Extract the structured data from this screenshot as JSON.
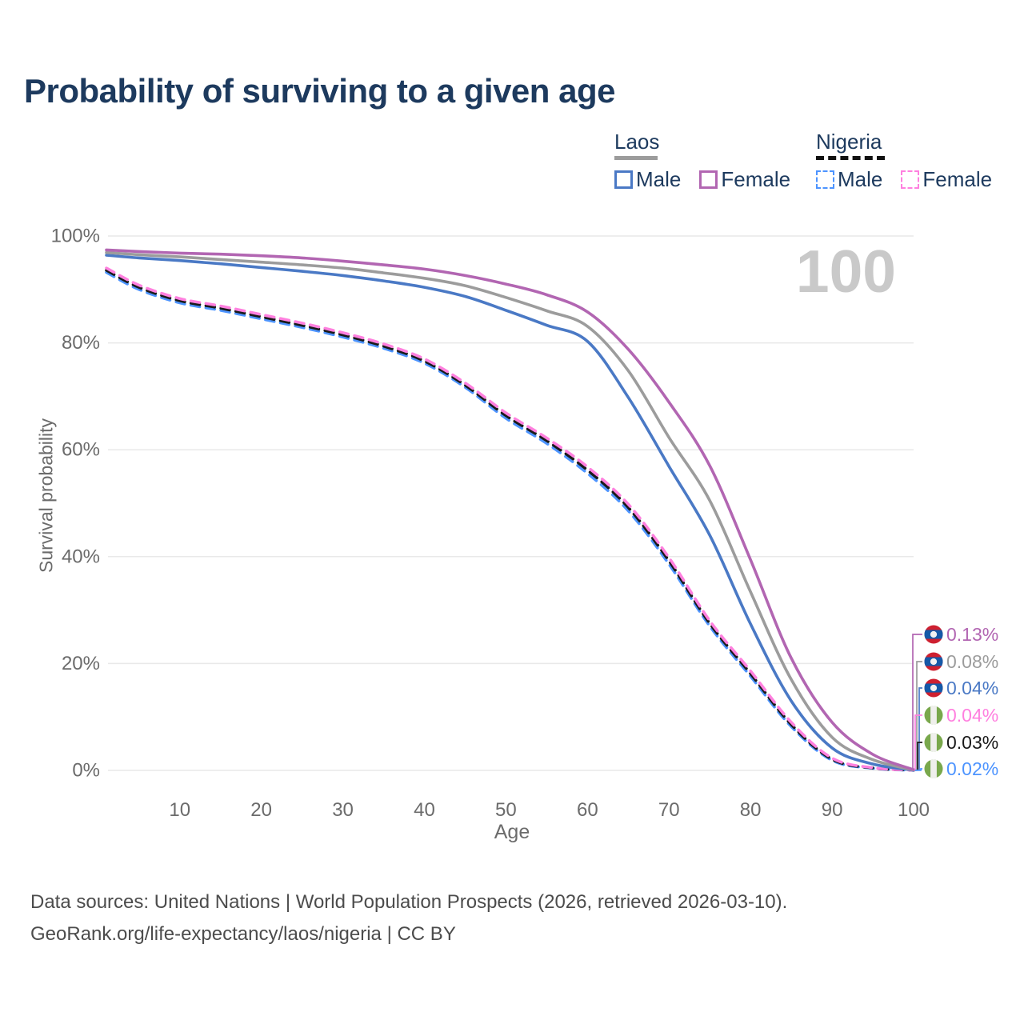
{
  "header": {
    "title": "Probability of surviving to a given age"
  },
  "legend": {
    "groups": [
      {
        "title": "Laos",
        "line_style": "solid",
        "underline_color": "#9c9c9c",
        "items": [
          {
            "label": "Male",
            "color": "#4a79c5"
          },
          {
            "label": "Female",
            "color": "#b266b2"
          }
        ]
      },
      {
        "title": "Nigeria",
        "line_style": "dashed",
        "underline_color": "#111111",
        "items": [
          {
            "label": "Male",
            "color": "#4d94ff"
          },
          {
            "label": "Female",
            "color": "#ff80df"
          }
        ]
      }
    ]
  },
  "chart_data": {
    "type": "line",
    "title": "Probability of surviving to a given age",
    "xlabel": "Age",
    "ylabel": "Survival probability",
    "xlim": [
      1,
      100
    ],
    "ylim": [
      0,
      100
    ],
    "x_ticks": [
      10,
      20,
      30,
      40,
      50,
      60,
      70,
      80,
      90,
      100
    ],
    "y_ticks": [
      "0%",
      "20%",
      "40%",
      "60%",
      "80%",
      "100%"
    ],
    "grid": "horizontal",
    "legend_position": "top-right",
    "watermark": "100",
    "series": [
      {
        "id": "laos-female",
        "country": "Laos",
        "group": "Female",
        "color": "#b266b2",
        "dash": "solid",
        "points": [
          [
            1,
            97.4
          ],
          [
            5,
            97.1
          ],
          [
            10,
            96.8
          ],
          [
            15,
            96.6
          ],
          [
            20,
            96.3
          ],
          [
            25,
            95.9
          ],
          [
            30,
            95.3
          ],
          [
            35,
            94.6
          ],
          [
            40,
            93.8
          ],
          [
            45,
            92.6
          ],
          [
            50,
            91.0
          ],
          [
            55,
            89.0
          ],
          [
            60,
            85.8
          ],
          [
            65,
            78.8
          ],
          [
            70,
            68.9
          ],
          [
            75,
            57.0
          ],
          [
            80,
            39.4
          ],
          [
            85,
            21.0
          ],
          [
            90,
            9.0
          ],
          [
            95,
            3.0
          ],
          [
            100,
            0.13
          ]
        ]
      },
      {
        "id": "laos-combined",
        "country": "Laos",
        "group": "All",
        "color": "#9c9c9c",
        "dash": "solid",
        "points": [
          [
            1,
            96.9
          ],
          [
            5,
            96.5
          ],
          [
            10,
            96.1
          ],
          [
            15,
            95.6
          ],
          [
            20,
            95.1
          ],
          [
            25,
            94.6
          ],
          [
            30,
            94.0
          ],
          [
            35,
            93.1
          ],
          [
            40,
            92.1
          ],
          [
            45,
            90.7
          ],
          [
            50,
            88.5
          ],
          [
            55,
            86.0
          ],
          [
            60,
            83.1
          ],
          [
            65,
            74.8
          ],
          [
            70,
            62.3
          ],
          [
            75,
            50.5
          ],
          [
            80,
            33.4
          ],
          [
            85,
            17.0
          ],
          [
            90,
            6.2
          ],
          [
            95,
            2.0
          ],
          [
            100,
            0.08
          ]
        ]
      },
      {
        "id": "laos-male",
        "country": "Laos",
        "group": "Male",
        "color": "#4a79c5",
        "dash": "solid",
        "points": [
          [
            1,
            96.4
          ],
          [
            5,
            95.9
          ],
          [
            10,
            95.4
          ],
          [
            15,
            94.8
          ],
          [
            20,
            94.1
          ],
          [
            25,
            93.4
          ],
          [
            30,
            92.6
          ],
          [
            35,
            91.6
          ],
          [
            40,
            90.4
          ],
          [
            45,
            88.7
          ],
          [
            50,
            86.1
          ],
          [
            55,
            83.3
          ],
          [
            60,
            80.3
          ],
          [
            65,
            69.8
          ],
          [
            70,
            56.9
          ],
          [
            75,
            44.0
          ],
          [
            80,
            27.4
          ],
          [
            85,
            13.0
          ],
          [
            90,
            4.2
          ],
          [
            95,
            1.2
          ],
          [
            100,
            0.04
          ]
        ]
      },
      {
        "id": "nigeria-female",
        "country": "Nigeria",
        "group": "Female",
        "color": "#ff80df",
        "dash": "dashed",
        "points": [
          [
            1,
            94.0
          ],
          [
            5,
            90.8
          ],
          [
            10,
            88.3
          ],
          [
            15,
            86.9
          ],
          [
            20,
            85.3
          ],
          [
            25,
            83.7
          ],
          [
            30,
            81.9
          ],
          [
            35,
            79.8
          ],
          [
            40,
            77.0
          ],
          [
            45,
            72.5
          ],
          [
            50,
            66.9
          ],
          [
            55,
            62.2
          ],
          [
            60,
            56.8
          ],
          [
            65,
            49.8
          ],
          [
            70,
            39.8
          ],
          [
            75,
            28.0
          ],
          [
            80,
            18.6
          ],
          [
            85,
            9.0
          ],
          [
            90,
            2.3
          ],
          [
            95,
            0.5
          ],
          [
            100,
            0.04
          ]
        ]
      },
      {
        "id": "nigeria-combined",
        "country": "Nigeria",
        "group": "All",
        "color": "#1a1a1a",
        "dash": "dashed",
        "points": [
          [
            1,
            93.6
          ],
          [
            5,
            90.4
          ],
          [
            10,
            87.9
          ],
          [
            15,
            86.5
          ],
          [
            20,
            84.9
          ],
          [
            25,
            83.3
          ],
          [
            30,
            81.5
          ],
          [
            35,
            79.4
          ],
          [
            40,
            76.6
          ],
          [
            45,
            72.1
          ],
          [
            50,
            66.4
          ],
          [
            55,
            61.7
          ],
          [
            60,
            56.2
          ],
          [
            65,
            49.2
          ],
          [
            70,
            39.2
          ],
          [
            75,
            27.5
          ],
          [
            80,
            18.1
          ],
          [
            85,
            8.6
          ],
          [
            90,
            2.1
          ],
          [
            95,
            0.45
          ],
          [
            100,
            0.03
          ]
        ]
      },
      {
        "id": "nigeria-male",
        "country": "Nigeria",
        "group": "Male",
        "color": "#4d94ff",
        "dash": "dashed",
        "points": [
          [
            1,
            93.2
          ],
          [
            5,
            90.0
          ],
          [
            10,
            87.5
          ],
          [
            15,
            86.1
          ],
          [
            20,
            84.5
          ],
          [
            25,
            82.9
          ],
          [
            30,
            81.1
          ],
          [
            35,
            79.0
          ],
          [
            40,
            76.2
          ],
          [
            45,
            71.7
          ],
          [
            50,
            65.9
          ],
          [
            55,
            61.2
          ],
          [
            60,
            55.6
          ],
          [
            65,
            48.6
          ],
          [
            70,
            38.6
          ],
          [
            75,
            27.0
          ],
          [
            80,
            17.6
          ],
          [
            85,
            8.2
          ],
          [
            90,
            1.9
          ],
          [
            95,
            0.4
          ],
          [
            100,
            0.02
          ]
        ]
      }
    ],
    "end_labels": [
      {
        "value": "0.13%",
        "color": "#b266b2",
        "flag": "laos-flag"
      },
      {
        "value": "0.08%",
        "color": "#9c9c9c",
        "flag": "laos-flag"
      },
      {
        "value": "0.04%",
        "color": "#4a79c5",
        "flag": "laos-flag"
      },
      {
        "value": "0.04%",
        "color": "#ff80df",
        "flag": "nigeria-flag"
      },
      {
        "value": "0.03%",
        "color": "#1a1a1a",
        "flag": "nigeria-flag"
      },
      {
        "value": "0.02%",
        "color": "#4d94ff",
        "flag": "nigeria-flag"
      }
    ],
    "flag_colors": {
      "laos_red": "#ce2030",
      "laos_blue": "#1559a8",
      "nigeria_green": "#79a84c",
      "nigeria_white": "#efefec"
    }
  },
  "footer": {
    "line1": "Data sources: United Nations | World Population Prospects (2026, retrieved 2026-03-10).",
    "line2": "GeoRank.org/life-expectancy/laos/nigeria | CC BY"
  }
}
